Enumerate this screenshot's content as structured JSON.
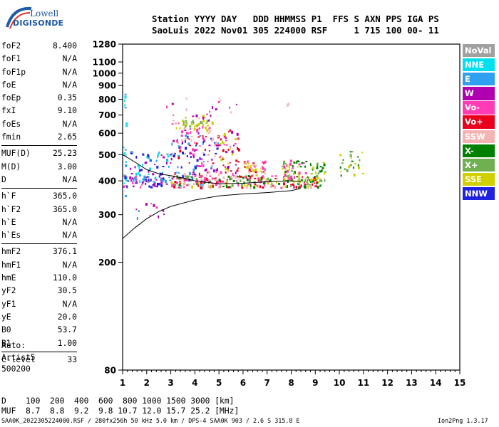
{
  "logo": {
    "line1": "Lowell",
    "line2": "DIGISONDE"
  },
  "header": {
    "line1": "Station YYYY DAY   DDD HHMMSS P1  FFS S AXN PPS IGA PS",
    "line2": "SaoLuis 2022 Nov01 305 224000 RSF     1 715 100 00- 11"
  },
  "params_a": [
    {
      "k": "foF2",
      "v": "8.400"
    },
    {
      "k": "foF1",
      "v": "N/A"
    },
    {
      "k": "foF1p",
      "v": "N/A"
    },
    {
      "k": "foE",
      "v": "N/A"
    },
    {
      "k": "foEp",
      "v": "0.35"
    },
    {
      "k": "fxI",
      "v": "9.10"
    },
    {
      "k": "foEs",
      "v": "N/A"
    },
    {
      "k": "fmin",
      "v": "2.65"
    }
  ],
  "params_b": [
    {
      "k": "MUF(D)",
      "v": "25.23"
    },
    {
      "k": "M(D)",
      "v": "3.00"
    },
    {
      "k": "D",
      "v": "N/A"
    }
  ],
  "params_c": [
    {
      "k": "h`F",
      "v": "365.0"
    },
    {
      "k": "h`F2",
      "v": "365.0"
    },
    {
      "k": "h`E",
      "v": "N/A"
    },
    {
      "k": "h`Es",
      "v": "N/A"
    }
  ],
  "params_d": [
    {
      "k": "hmF2",
      "v": "376.1"
    },
    {
      "k": "hmF1",
      "v": "N/A"
    },
    {
      "k": "hmE",
      "v": "110.0"
    },
    {
      "k": "yF2",
      "v": "30.5"
    },
    {
      "k": "yF1",
      "v": "N/A"
    },
    {
      "k": "yE",
      "v": "20.0"
    },
    {
      "k": "B0",
      "v": "53.7"
    },
    {
      "k": "B1",
      "v": "1.00"
    }
  ],
  "params_e": [
    {
      "k": "C-level",
      "v": "33"
    }
  ],
  "auto": {
    "line1": "Auto:",
    "line2": "Artist5",
    "line3": "500200"
  },
  "muf_table": {
    "d_row": "D    100  200  400  600  800 1000 1500 3000 [km]",
    "muf_row": "MUF  8.7  8.8  9.2  9.8 10.7 12.0 15.7 25.2 [MHz]"
  },
  "footer": {
    "left": "SAA0K_2022305224000.RSF / 280fx256h 50 kHz 5.0 km / DPS-4 SAA0K 903 / 2.6 S 315.8 E",
    "right": "Ion2Png 1.3.17"
  },
  "legend": [
    {
      "label": "NoVal",
      "color": "#a0a0a0"
    },
    {
      "label": "NNE",
      "color": "#00e0f0"
    },
    {
      "label": "E",
      "color": "#30a0f0"
    },
    {
      "label": "W",
      "color": "#b000b0"
    },
    {
      "label": "Vo-",
      "color": "#ff3cb4"
    },
    {
      "label": "Vo+",
      "color": "#e8001c"
    },
    {
      "label": "SSW",
      "color": "#f4b4b4"
    },
    {
      "label": "X-",
      "color": "#008000"
    },
    {
      "label": "X+",
      "color": "#70b050"
    },
    {
      "label": "SSE",
      "color": "#d0d000"
    },
    {
      "label": "NNW",
      "color": "#2020e0"
    }
  ],
  "chart_data": {
    "type": "scatter",
    "title": "",
    "xlabel": "",
    "ylabel": "",
    "xlim": [
      1,
      15
    ],
    "x_ticks": [
      1,
      2,
      3,
      4,
      5,
      6,
      7,
      8,
      9,
      10,
      11,
      12,
      13,
      14,
      15
    ],
    "y_scale": "log",
    "ylim": [
      80,
      1280
    ],
    "y_ticks": [
      80,
      200,
      300,
      400,
      500,
      600,
      700,
      800,
      900,
      1000,
      1100,
      1280
    ],
    "grid": false,
    "traces": [
      {
        "name": "profile",
        "x": [
          1.0,
          1.5,
          2.0,
          2.5,
          3.0,
          4.0,
          5.0,
          6.0,
          7.0,
          8.0,
          8.4
        ],
        "y": [
          245,
          268,
          290,
          308,
          322,
          340,
          352,
          358,
          362,
          368,
          375
        ]
      },
      {
        "name": "trace",
        "x": [
          1.0,
          1.5,
          2.0,
          2.5,
          3.0,
          3.5,
          4.0,
          5.0,
          6.0,
          7.0,
          8.0,
          8.4
        ],
        "y": [
          500,
          470,
          440,
          425,
          418,
          410,
          400,
          390,
          392,
          397,
          400,
          398
        ]
      }
    ],
    "echo_clusters": [
      {
        "x": [
          1.0,
          1.15
        ],
        "y": [
          350,
          860
        ],
        "n": 20,
        "colors": [
          "#00e0f0",
          "#30a0f0",
          "#00e0f0"
        ]
      },
      {
        "x": [
          1.0,
          2.6
        ],
        "y": [
          380,
          420
        ],
        "n": 60,
        "colors": [
          "#2020e0",
          "#b000b0",
          "#30a0f0",
          "#ff3cb4"
        ]
      },
      {
        "x": [
          1.3,
          3.0
        ],
        "y": [
          390,
          520
        ],
        "n": 70,
        "colors": [
          "#2020e0",
          "#b000b0",
          "#30a0f0",
          "#00e0f0"
        ]
      },
      {
        "x": [
          1.5,
          2.8
        ],
        "y": [
          290,
          340
        ],
        "n": 12,
        "colors": [
          "#b000b0",
          "#30a0f0",
          "#ff3cb4"
        ]
      },
      {
        "x": [
          3.0,
          5.0
        ],
        "y": [
          380,
          600
        ],
        "n": 180,
        "colors": [
          "#b000b0",
          "#ff3cb4",
          "#2020e0",
          "#e8001c",
          "#f4b4b4",
          "#30a0f0"
        ]
      },
      {
        "x": [
          3.0,
          4.8
        ],
        "y": [
          600,
          710
        ],
        "n": 45,
        "colors": [
          "#b000b0",
          "#ff3cb4",
          "#d0d000",
          "#f4b4b4"
        ]
      },
      {
        "x": [
          3.5,
          4.5
        ],
        "y": [
          640,
          675
        ],
        "n": 25,
        "colors": [
          "#d0d000",
          "#70b050"
        ]
      },
      {
        "x": [
          3.0,
          9.2
        ],
        "y": [
          380,
          420
        ],
        "n": 240,
        "colors": [
          "#008000",
          "#70b050",
          "#d0d000",
          "#ff3cb4",
          "#f4b4b4",
          "#e8001c"
        ]
      },
      {
        "x": [
          5.0,
          5.8
        ],
        "y": [
          420,
          620
        ],
        "n": 55,
        "colors": [
          "#d0d000",
          "#ff3cb4",
          "#b000b0",
          "#e8001c"
        ]
      },
      {
        "x": [
          6.0,
          6.9
        ],
        "y": [
          410,
          480
        ],
        "n": 50,
        "colors": [
          "#d0d000",
          "#ff3cb4",
          "#f4b4b4",
          "#e8001c"
        ]
      },
      {
        "x": [
          7.6,
          8.6
        ],
        "y": [
          410,
          480
        ],
        "n": 55,
        "colors": [
          "#d0d000",
          "#70b050",
          "#ff3cb4",
          "#008000"
        ]
      },
      {
        "x": [
          8.6,
          9.4
        ],
        "y": [
          400,
          470
        ],
        "n": 30,
        "colors": [
          "#008000",
          "#70b050",
          "#d0d000"
        ]
      },
      {
        "x": [
          10.0,
          11.1
        ],
        "y": [
          420,
          540
        ],
        "n": 25,
        "colors": [
          "#70b050",
          "#008000",
          "#d0d000"
        ]
      },
      {
        "x": [
          2.8,
          5.8
        ],
        "y": [
          700,
          830
        ],
        "n": 14,
        "colors": [
          "#b000b0",
          "#ff3cb4",
          "#f4b4b4"
        ]
      },
      {
        "x": [
          7.7,
          8.0
        ],
        "y": [
          740,
          780
        ],
        "n": 3,
        "colors": [
          "#f4b4b4"
        ]
      }
    ]
  }
}
